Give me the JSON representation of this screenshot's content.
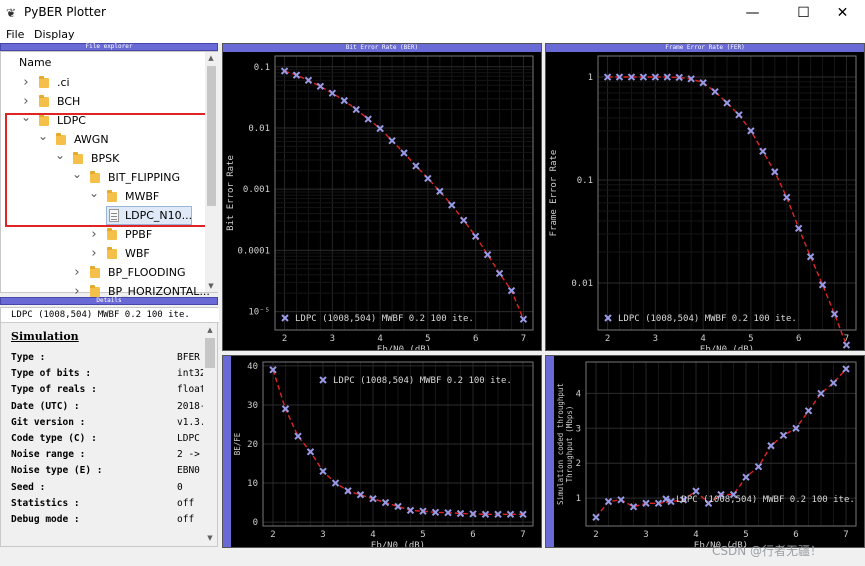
{
  "window": {
    "title": "PyBER Plotter",
    "icon": "pyber-icon",
    "minimize": "—",
    "maximize": "☐",
    "close": "✕"
  },
  "menu": [
    {
      "label": "File"
    },
    {
      "label": "Display"
    }
  ],
  "explorer": {
    "panel_title": "File explorer",
    "column_header": "Name",
    "items": [
      {
        "label": ".ci",
        "level": 1,
        "expanded": false,
        "type": "folder"
      },
      {
        "label": "BCH",
        "level": 1,
        "expanded": false,
        "type": "folder"
      },
      {
        "label": "LDPC",
        "level": 1,
        "expanded": true,
        "type": "folder"
      },
      {
        "label": "AWGN",
        "level": 2,
        "expanded": true,
        "type": "folder"
      },
      {
        "label": "BPSK",
        "level": 3,
        "expanded": true,
        "type": "folder"
      },
      {
        "label": "BIT_FLIPPING",
        "level": 4,
        "expanded": true,
        "type": "folder"
      },
      {
        "label": "MWBF",
        "level": 5,
        "expanded": true,
        "type": "folder"
      },
      {
        "label": "LDPC_N10...",
        "level": 6,
        "expanded": false,
        "type": "file",
        "selected": true
      },
      {
        "label": "PPBF",
        "level": 5,
        "expanded": false,
        "type": "folder"
      },
      {
        "label": "WBF",
        "level": 5,
        "expanded": false,
        "type": "folder"
      },
      {
        "label": "BP_FLOODING",
        "level": 4,
        "expanded": false,
        "type": "folder"
      },
      {
        "label": "BP_HORIZONTAL...",
        "level": 4,
        "expanded": false,
        "type": "folder"
      }
    ]
  },
  "details": {
    "panel_title": "Details",
    "legend": "LDPC (1008,504) MWBF 0.2 100 ite.",
    "section": "Simulation",
    "rows": [
      {
        "key": "Type :",
        "value": "BFER"
      },
      {
        "key": "Type of bits :",
        "value": "int32"
      },
      {
        "key": "Type of reals :",
        "value": "float"
      },
      {
        "key": "Date (UTC) :",
        "value": "2018-"
      },
      {
        "key": "Git version :",
        "value": "v1.3."
      },
      {
        "key": "Code type (C) :",
        "value": "LDPC"
      },
      {
        "key": "Noise range :",
        "value": "2 ->"
      },
      {
        "key": "Noise type (E) :",
        "value": "EBN0"
      },
      {
        "key": "Seed :",
        "value": "0"
      },
      {
        "key": "Statistics :",
        "value": "off"
      },
      {
        "key": "Debug mode :",
        "value": "off"
      }
    ]
  },
  "colors": {
    "accent": "#6a6ad6",
    "plot_bg": "#000000",
    "curve": "#e02424",
    "marker": "#9a9ae6",
    "selection_box": "#e02424"
  },
  "chart_data": [
    {
      "type": "line",
      "panel_title": "Bit Error Rate (BER)",
      "xlabel": "Eb/N0 (dB)",
      "ylabel": "Bit Error Rate",
      "yscale": "log",
      "xlim": [
        1.8,
        7.2
      ],
      "ylim": [
        5e-06,
        0.15
      ],
      "xticks": [
        "2",
        "3",
        "4",
        "5",
        "6",
        "7"
      ],
      "yticks": [
        "0.1",
        "0.01",
        "0.001",
        "0.0001",
        "10⁻⁵"
      ],
      "ytick_values": [
        0.1,
        0.01,
        0.001,
        0.0001,
        1e-05
      ],
      "legend": "LDPC (1008,504) MWBF 0.2 100 ite.",
      "legend_position": "bottom-left",
      "x": [
        2.0,
        2.25,
        2.5,
        2.75,
        3.0,
        3.25,
        3.5,
        3.75,
        4.0,
        4.25,
        4.5,
        4.75,
        5.0,
        5.25,
        5.5,
        5.75,
        6.0,
        6.25,
        6.5,
        6.75,
        7.0
      ],
      "y": [
        0.085,
        0.073,
        0.06,
        0.048,
        0.037,
        0.028,
        0.02,
        0.014,
        0.0098,
        0.0062,
        0.0039,
        0.0024,
        0.0015,
        0.00092,
        0.00055,
        0.00031,
        0.00017,
        8.5e-05,
        4.2e-05,
        2.2e-05,
        7.5e-06
      ]
    },
    {
      "type": "line",
      "panel_title": "Frame Error Rate (FER)",
      "xlabel": "Eb/N0 (dB)",
      "ylabel": "Frame Error Rate",
      "yscale": "log",
      "xlim": [
        1.8,
        7.2
      ],
      "ylim": [
        0.0035,
        1.6
      ],
      "xticks": [
        "2",
        "3",
        "4",
        "5",
        "6",
        "7"
      ],
      "yticks": [
        "1",
        "0.1",
        "0.01"
      ],
      "ytick_values": [
        1,
        0.1,
        0.01
      ],
      "legend": "LDPC (1008,504) MWBF 0.2 100 ite.",
      "legend_position": "bottom-left",
      "x": [
        2.0,
        2.25,
        2.5,
        2.75,
        3.0,
        3.25,
        3.5,
        3.75,
        4.0,
        4.25,
        4.5,
        4.75,
        5.0,
        5.25,
        5.5,
        5.75,
        6.0,
        6.25,
        6.5,
        6.75,
        7.0
      ],
      "y": [
        1.0,
        1.0,
        1.0,
        1.0,
        1.0,
        1.0,
        0.99,
        0.96,
        0.88,
        0.72,
        0.56,
        0.43,
        0.3,
        0.19,
        0.12,
        0.068,
        0.034,
        0.018,
        0.0096,
        0.005,
        0.0025
      ]
    },
    {
      "type": "line",
      "panel_title": "",
      "xlabel": "Eb/N0 (dB)",
      "ylabel": "BE/FE",
      "yscale": "linear",
      "xlim": [
        1.8,
        7.2
      ],
      "ylim": [
        -1,
        41
      ],
      "xticks": [
        "2",
        "3",
        "4",
        "5",
        "6",
        "7"
      ],
      "yticks": [
        "0",
        "10",
        "20",
        "30",
        "40"
      ],
      "ytick_values": [
        0,
        10,
        20,
        30,
        40
      ],
      "legend": "LDPC (1008,504) MWBF 0.2 100 ite.",
      "legend_position": "top-right",
      "x": [
        2.0,
        2.25,
        2.5,
        2.75,
        3.0,
        3.25,
        3.5,
        3.75,
        4.0,
        4.25,
        4.5,
        4.75,
        5.0,
        5.25,
        5.5,
        5.75,
        6.0,
        6.25,
        6.5,
        6.75,
        7.0
      ],
      "y": [
        39,
        29,
        22,
        18,
        13,
        10,
        8,
        7,
        6,
        5,
        4,
        3,
        2.8,
        2.5,
        2.4,
        2.2,
        2.1,
        2.0,
        2.0,
        2.0,
        2.0
      ]
    },
    {
      "type": "line",
      "panel_title": "",
      "xlabel": "Eb/N0 (dB)",
      "ylabel": "Simulation coded throughput\nThroughput (Mbps)",
      "yscale": "linear",
      "xlim": [
        1.8,
        7.2
      ],
      "ylim": [
        0.2,
        4.9
      ],
      "xticks": [
        "2",
        "3",
        "4",
        "5",
        "6",
        "7"
      ],
      "yticks": [
        "1",
        "2",
        "3",
        "4"
      ],
      "ytick_values": [
        1,
        2,
        3,
        4
      ],
      "legend": "LDPC (1008,504) MWBF 0.2 100 ite.",
      "legend_position": "bottom-right",
      "x": [
        2.0,
        2.25,
        2.5,
        2.75,
        3.0,
        3.25,
        3.5,
        3.75,
        4.0,
        4.25,
        4.5,
        4.75,
        5.0,
        5.25,
        5.5,
        5.75,
        6.0,
        6.25,
        6.5,
        6.75,
        7.0
      ],
      "y": [
        0.45,
        0.9,
        0.95,
        0.75,
        0.85,
        0.85,
        0.9,
        0.95,
        1.2,
        0.85,
        1.1,
        1.1,
        1.6,
        1.9,
        2.5,
        2.8,
        3.0,
        3.5,
        4.0,
        4.3,
        4.7
      ]
    }
  ],
  "watermark": "CSDN @行者无疆！"
}
